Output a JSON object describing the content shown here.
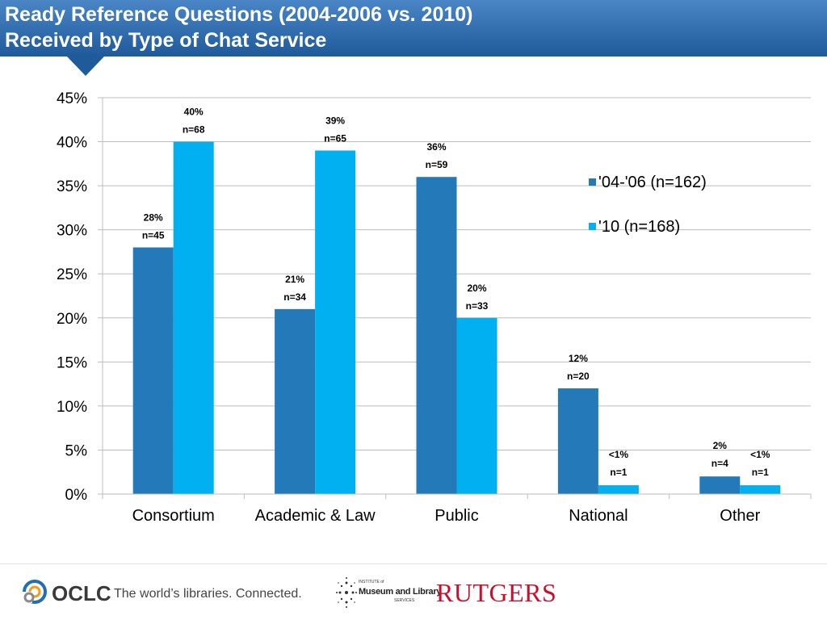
{
  "title": {
    "line1": "Ready Reference Questions (2004-2006 vs. 2010)",
    "line2": "Received by Type of Chat Service"
  },
  "chart_data": {
    "type": "bar",
    "categories": [
      "Consortium",
      "Academic & Law",
      "Public",
      "National",
      "Other"
    ],
    "series": [
      {
        "name": "'04-'06 (n=162)",
        "color": "#2479b9",
        "values": [
          28,
          21,
          36,
          12,
          2
        ],
        "labels": [
          "28%",
          "21%",
          "36%",
          "12%",
          "2%"
        ],
        "counts": [
          "n=45",
          "n=34",
          "n=59",
          "n=20",
          "n=4"
        ]
      },
      {
        "name": "'10 (n=168)",
        "color": "#00b0f0",
        "values": [
          40,
          39,
          20,
          1,
          1
        ],
        "labels": [
          "40%",
          "39%",
          "20%",
          "<1%",
          "<1%"
        ],
        "counts": [
          "n=68",
          "n=65",
          "n=33",
          "n=1",
          "n=1"
        ]
      }
    ],
    "ylim": [
      0,
      45
    ],
    "yticks": [
      "0%",
      "5%",
      "10%",
      "15%",
      "20%",
      "25%",
      "30%",
      "35%",
      "40%",
      "45%"
    ],
    "grid": true,
    "legend_position": "right"
  },
  "footer": {
    "oclc_name": "OCLC",
    "oclc_tagline": "The world’s libraries. Connected.",
    "imls_small_top": "INSTITUTE of",
    "imls_name": "Museum and Library",
    "imls_small_bottom": "SERVICES",
    "rutgers_name": "RUTGERS"
  }
}
